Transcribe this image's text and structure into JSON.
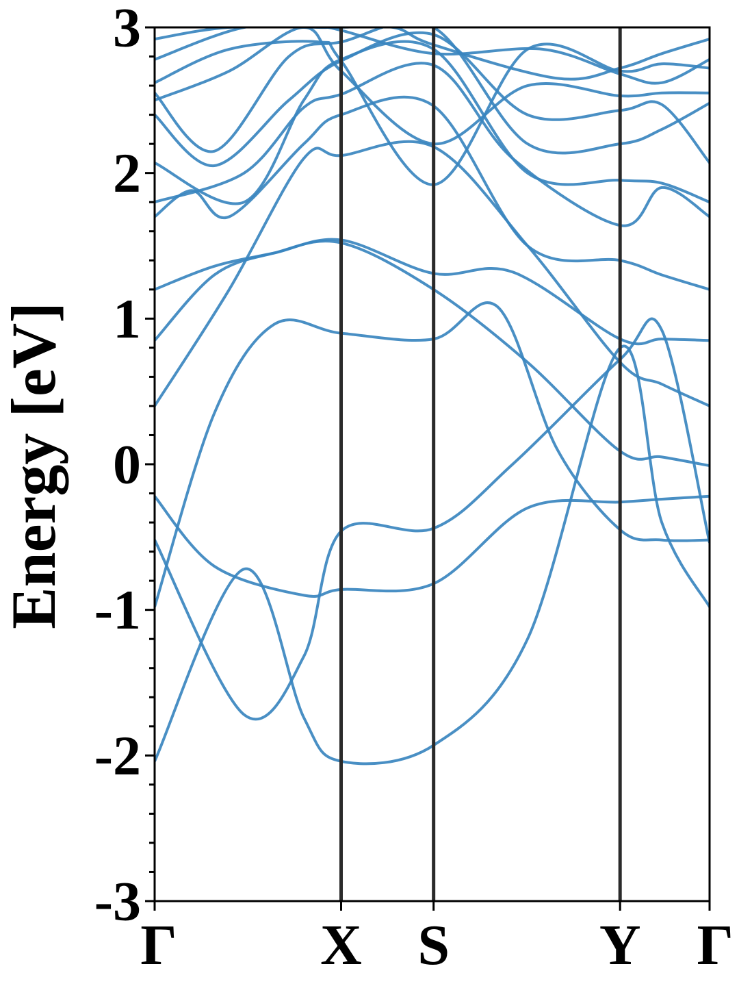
{
  "chart_data": {
    "type": "line",
    "title": "",
    "ylabel": "Energy [eV]",
    "xlabel": "",
    "ylim": [
      -3,
      3
    ],
    "y_ticks": [
      -3,
      -2,
      -1,
      0,
      1,
      2,
      3
    ],
    "y_tick_labels": [
      "-3",
      "-2",
      "-1",
      "0",
      "1",
      "2",
      "3"
    ],
    "y_minor_step": 0.2,
    "grid": false,
    "x_range": [
      0,
      3.72
    ],
    "kpoints": [
      {
        "label": "Γ",
        "x": 0.0
      },
      {
        "label": "X",
        "x": 1.25
      },
      {
        "label": "S",
        "x": 1.87
      },
      {
        "label": "Y",
        "x": 3.12
      },
      {
        "label": "Γ",
        "x": 3.72
      }
    ],
    "band_color": "#3a86bf",
    "line_color": "#2a2a2a",
    "bands": [
      {
        "points": [
          [
            0.0,
            -2.04
          ],
          [
            0.6,
            -0.72
          ],
          [
            1.0,
            -1.74
          ],
          [
            1.25,
            -2.04
          ],
          [
            1.87,
            -1.93
          ],
          [
            2.5,
            -1.2
          ],
          [
            3.12,
            0.8
          ],
          [
            3.4,
            -0.4
          ],
          [
            3.72,
            -0.98
          ]
        ]
      },
      {
        "points": [
          [
            0.0,
            -0.52
          ],
          [
            0.6,
            -1.72
          ],
          [
            1.0,
            -1.32
          ],
          [
            1.25,
            -0.46
          ],
          [
            1.87,
            -0.44
          ],
          [
            2.4,
            0.0
          ],
          [
            3.12,
            0.72
          ],
          [
            3.4,
            0.92
          ],
          [
            3.72,
            -0.54
          ]
        ]
      },
      {
        "points": [
          [
            0.0,
            -0.22
          ],
          [
            0.4,
            -0.7
          ],
          [
            1.0,
            -0.9
          ],
          [
            1.25,
            -0.86
          ],
          [
            1.87,
            -0.82
          ],
          [
            2.5,
            -0.3
          ],
          [
            3.12,
            -0.26
          ],
          [
            3.4,
            -0.24
          ],
          [
            3.72,
            -0.22
          ]
        ]
      },
      {
        "points": [
          [
            0.0,
            -0.98
          ],
          [
            0.4,
            0.35
          ],
          [
            0.8,
            0.96
          ],
          [
            1.25,
            0.9
          ],
          [
            1.87,
            0.86
          ],
          [
            2.3,
            1.08
          ],
          [
            2.7,
            0.1
          ],
          [
            3.12,
            -0.45
          ],
          [
            3.4,
            -0.52
          ],
          [
            3.72,
            -0.52
          ]
        ]
      },
      {
        "points": [
          [
            0.0,
            0.85
          ],
          [
            0.4,
            1.3
          ],
          [
            0.8,
            1.45
          ],
          [
            1.25,
            1.52
          ],
          [
            1.87,
            1.2
          ],
          [
            2.5,
            0.7
          ],
          [
            3.12,
            0.09
          ],
          [
            3.4,
            0.05
          ],
          [
            3.72,
            -0.01
          ]
        ]
      },
      {
        "points": [
          [
            0.0,
            0.4
          ],
          [
            0.5,
            1.2
          ],
          [
            1.0,
            2.1
          ],
          [
            1.25,
            2.12
          ],
          [
            1.87,
            2.18
          ],
          [
            2.5,
            1.5
          ],
          [
            3.12,
            0.7
          ],
          [
            3.4,
            0.55
          ],
          [
            3.72,
            0.4
          ]
        ]
      },
      {
        "points": [
          [
            0.0,
            1.2
          ],
          [
            0.4,
            1.36
          ],
          [
            0.8,
            1.45
          ],
          [
            1.25,
            1.54
          ],
          [
            1.87,
            1.31
          ],
          [
            2.4,
            1.32
          ],
          [
            3.12,
            0.86
          ],
          [
            3.4,
            0.86
          ],
          [
            3.72,
            0.85
          ]
        ]
      },
      {
        "points": [
          [
            0.0,
            1.7
          ],
          [
            0.25,
            1.88
          ],
          [
            0.5,
            1.7
          ],
          [
            1.0,
            2.2
          ],
          [
            1.25,
            2.4
          ],
          [
            1.87,
            2.46
          ],
          [
            2.5,
            1.5
          ],
          [
            3.12,
            1.4
          ],
          [
            3.4,
            1.3
          ],
          [
            3.72,
            1.2
          ]
        ]
      },
      {
        "points": [
          [
            0.0,
            1.8
          ],
          [
            0.6,
            2.0
          ],
          [
            1.0,
            2.45
          ],
          [
            1.25,
            2.54
          ],
          [
            1.87,
            2.74
          ],
          [
            2.4,
            2.1
          ],
          [
            3.12,
            1.64
          ],
          [
            3.4,
            1.9
          ],
          [
            3.72,
            1.7
          ]
        ]
      },
      {
        "points": [
          [
            0.0,
            2.07
          ],
          [
            0.6,
            1.8
          ],
          [
            1.0,
            2.5
          ],
          [
            1.25,
            2.78
          ],
          [
            1.87,
            2.85
          ],
          [
            2.5,
            2.0
          ],
          [
            3.12,
            1.95
          ],
          [
            3.4,
            1.93
          ],
          [
            3.72,
            1.8
          ]
        ]
      },
      {
        "points": [
          [
            0.0,
            2.4
          ],
          [
            0.4,
            2.05
          ],
          [
            0.9,
            2.5
          ],
          [
            1.25,
            2.77
          ],
          [
            1.87,
            2.95
          ],
          [
            2.5,
            2.4
          ],
          [
            3.12,
            2.43
          ],
          [
            3.4,
            2.47
          ],
          [
            3.72,
            2.07
          ]
        ]
      },
      {
        "points": [
          [
            0.0,
            2.55
          ],
          [
            0.4,
            2.15
          ],
          [
            0.9,
            2.8
          ],
          [
            1.25,
            2.9
          ],
          [
            1.87,
            3.0
          ],
          [
            2.5,
            2.2
          ],
          [
            3.12,
            2.2
          ],
          [
            3.4,
            2.3
          ],
          [
            3.72,
            2.48
          ]
        ]
      },
      {
        "points": [
          [
            0.0,
            2.5
          ],
          [
            0.5,
            2.7
          ],
          [
            1.0,
            3.0
          ],
          [
            1.25,
            2.7
          ],
          [
            1.87,
            2.2
          ],
          [
            2.5,
            2.6
          ],
          [
            3.12,
            2.53
          ],
          [
            3.4,
            2.55
          ],
          [
            3.72,
            2.55
          ]
        ]
      },
      {
        "points": [
          [
            0.0,
            2.62
          ],
          [
            0.5,
            2.85
          ],
          [
            1.1,
            2.9
          ],
          [
            1.25,
            2.77
          ],
          [
            1.87,
            1.92
          ],
          [
            2.5,
            2.85
          ],
          [
            3.12,
            2.7
          ],
          [
            3.4,
            2.75
          ],
          [
            3.72,
            2.72
          ]
        ]
      },
      {
        "points": [
          [
            0.0,
            2.78
          ],
          [
            0.6,
            3.0
          ],
          [
            1.1,
            3.0
          ],
          [
            1.25,
            2.98
          ],
          [
            1.87,
            2.82
          ],
          [
            2.6,
            2.85
          ],
          [
            3.12,
            2.68
          ],
          [
            3.4,
            2.62
          ],
          [
            3.72,
            2.78
          ]
        ]
      },
      {
        "points": [
          [
            0.0,
            2.92
          ],
          [
            0.5,
            3.0
          ],
          [
            1.2,
            3.0
          ],
          [
            1.6,
            3.0
          ],
          [
            1.87,
            2.88
          ],
          [
            2.7,
            2.65
          ],
          [
            3.12,
            2.72
          ],
          [
            3.4,
            2.82
          ],
          [
            3.72,
            2.92
          ]
        ]
      }
    ]
  }
}
